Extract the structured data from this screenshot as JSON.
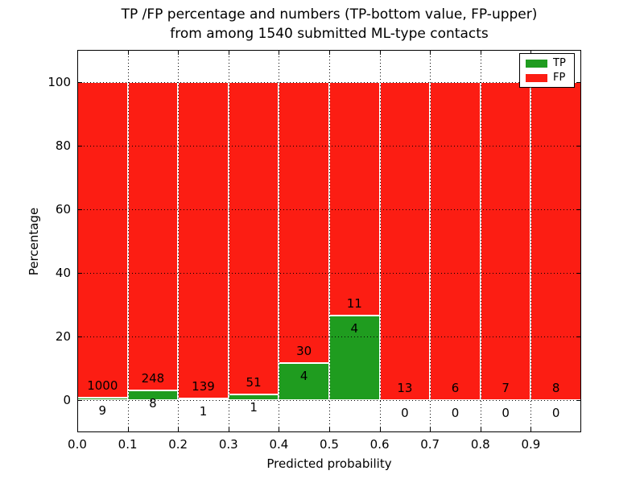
{
  "chart_data": {
    "type": "bar",
    "stacked": true,
    "normalized_to_percent": true,
    "title_line1": "TP /FP percentage and numbers (TP-bottom value, FP-upper)",
    "title_line2": "from among 1540 submitted ML-type contacts",
    "xlabel": "Predicted probability",
    "ylabel": "Percentage",
    "categories": [
      "0.0",
      "0.1",
      "0.2",
      "0.3",
      "0.4",
      "0.5",
      "0.6",
      "0.7",
      "0.8",
      "0.9"
    ],
    "series": [
      {
        "name": "TP",
        "color": "#1f9c1f",
        "values": [
          9,
          8,
          1,
          1,
          4,
          4,
          0,
          0,
          0,
          0
        ]
      },
      {
        "name": "FP",
        "color": "#fc1d13",
        "values": [
          1000,
          248,
          139,
          51,
          30,
          11,
          13,
          6,
          7,
          8
        ]
      }
    ],
    "total_contacts": 1540,
    "yticks": [
      0,
      20,
      40,
      60,
      80,
      100
    ],
    "ylim": [
      -10,
      110
    ],
    "grid": "dotted-black-both-axes",
    "legend_position": "upper-right",
    "bar_edge_color": "#ffffff",
    "background_color": "#ffffff"
  }
}
